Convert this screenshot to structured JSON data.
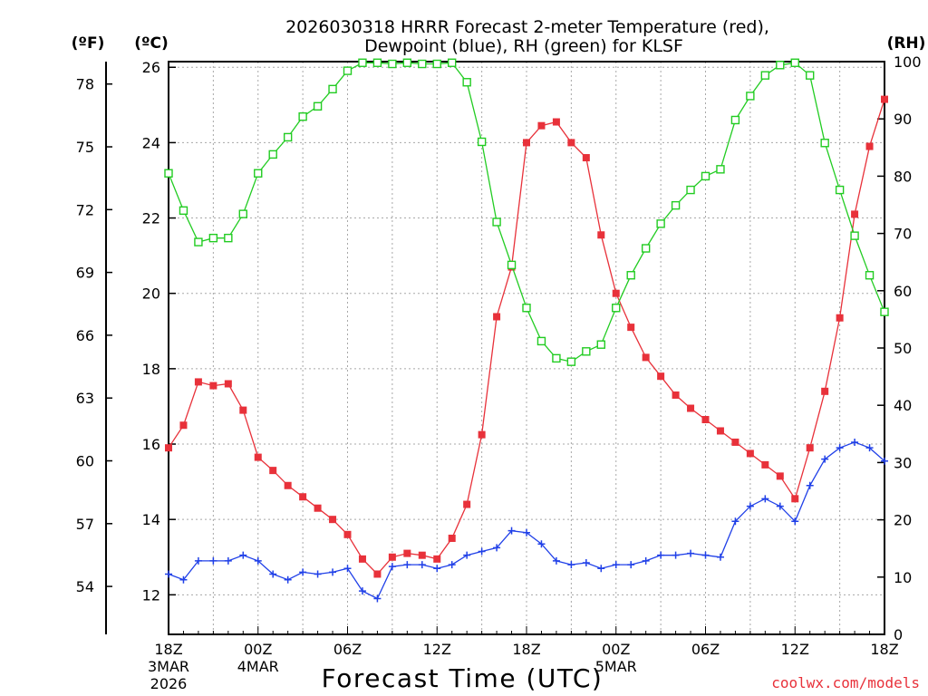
{
  "chart_data": {
    "type": "line",
    "title_line1": "2026030318 HRRR Forecast 2-meter Temperature (red),",
    "title_line2": "Dewpoint (blue), RH (green) for KLSF",
    "xlabel": "Forecast Time (UTC)",
    "credit": "coolwx.com/models",
    "left_unit_f": "(ºF)",
    "left_unit_c": "(ºC)",
    "right_unit": "(RH)",
    "hours_from_start": [
      0,
      1,
      2,
      3,
      4,
      5,
      6,
      7,
      8,
      9,
      10,
      11,
      12,
      13,
      14,
      15,
      16,
      17,
      18,
      19,
      20,
      21,
      22,
      23,
      24,
      25,
      26,
      27,
      28,
      29,
      30,
      31,
      32,
      33,
      34,
      35,
      36,
      37,
      38,
      39,
      40,
      41,
      42,
      43,
      44,
      45,
      46,
      47,
      48
    ],
    "celsius_axis": {
      "min": 10.95,
      "max": 26.15,
      "ticks": [
        12,
        14,
        16,
        18,
        20,
        22,
        24,
        26
      ]
    },
    "fahrenheit_ticks": [
      54,
      57,
      60,
      63,
      66,
      69,
      72,
      75,
      78
    ],
    "rh_axis": {
      "min": 0,
      "max": 100,
      "ticks": [
        0,
        10,
        20,
        30,
        40,
        50,
        60,
        70,
        80,
        90,
        100
      ]
    },
    "x_ticks": [
      {
        "hour": 0,
        "label": "18Z",
        "sub1": "3MAR",
        "sub2": "2026"
      },
      {
        "hour": 6,
        "label": "00Z",
        "sub1": "4MAR",
        "sub2": ""
      },
      {
        "hour": 12,
        "label": "06Z",
        "sub1": "",
        "sub2": ""
      },
      {
        "hour": 18,
        "label": "12Z",
        "sub1": "",
        "sub2": ""
      },
      {
        "hour": 24,
        "label": "18Z",
        "sub1": "",
        "sub2": ""
      },
      {
        "hour": 30,
        "label": "00Z",
        "sub1": "5MAR",
        "sub2": ""
      },
      {
        "hour": 36,
        "label": "06Z",
        "sub1": "",
        "sub2": ""
      },
      {
        "hour": 42,
        "label": "12Z",
        "sub1": "",
        "sub2": ""
      },
      {
        "hour": 48,
        "label": "18Z",
        "sub1": "",
        "sub2": ""
      }
    ],
    "series": [
      {
        "name": "Temperature",
        "units": "C",
        "color": "#e8313a",
        "marker": "filled-square",
        "values": [
          15.9,
          16.5,
          17.65,
          17.55,
          17.6,
          16.9,
          15.65,
          15.3,
          14.9,
          14.6,
          14.3,
          14.0,
          13.6,
          12.95,
          12.55,
          13.0,
          13.1,
          13.05,
          12.95,
          13.5,
          14.4,
          16.25,
          19.38,
          20.7,
          24.0,
          24.45,
          24.55,
          24.0,
          23.6,
          21.55,
          20.0,
          19.1,
          18.3,
          17.8,
          17.3,
          16.95,
          16.65,
          16.35,
          16.05,
          15.75,
          15.45,
          15.15,
          14.55,
          15.9,
          17.4,
          19.35,
          22.1,
          23.9,
          25.15
        ]
      },
      {
        "name": "Dewpoint",
        "units": "C",
        "color": "#2040e8",
        "marker": "plus",
        "values": [
          12.55,
          12.4,
          12.9,
          12.9,
          12.9,
          13.05,
          12.9,
          12.55,
          12.4,
          12.6,
          12.55,
          12.6,
          12.7,
          12.1,
          11.9,
          12.75,
          12.8,
          12.8,
          12.7,
          12.8,
          13.05,
          13.15,
          13.25,
          13.7,
          13.65,
          13.35,
          12.9,
          12.8,
          12.85,
          12.7,
          12.8,
          12.8,
          12.9,
          13.05,
          13.05,
          13.1,
          13.05,
          13.0,
          13.95,
          14.35,
          14.55,
          14.35,
          13.95,
          14.9,
          15.6,
          15.9,
          16.05,
          15.9,
          15.55
        ]
      },
      {
        "name": "RH",
        "units": "%",
        "color": "#22cc22",
        "marker": "open-square",
        "values": [
          80.5,
          74,
          68.5,
          69.2,
          69.2,
          73.4,
          80.5,
          83.8,
          86.8,
          90.4,
          92.2,
          95.2,
          98.4,
          99.8,
          99.8,
          99.6,
          99.8,
          99.6,
          99.6,
          99.8,
          96.4,
          86,
          72,
          64.5,
          57,
          51.2,
          48.2,
          47.6,
          49.4,
          50.6,
          57,
          62.7,
          67.4,
          71.7,
          74.9,
          77.6,
          80,
          81.2,
          89.8,
          94,
          97.6,
          99.4,
          99.8,
          97.6,
          85.8,
          77.6,
          69.6,
          62.7,
          56.3
        ]
      }
    ]
  }
}
